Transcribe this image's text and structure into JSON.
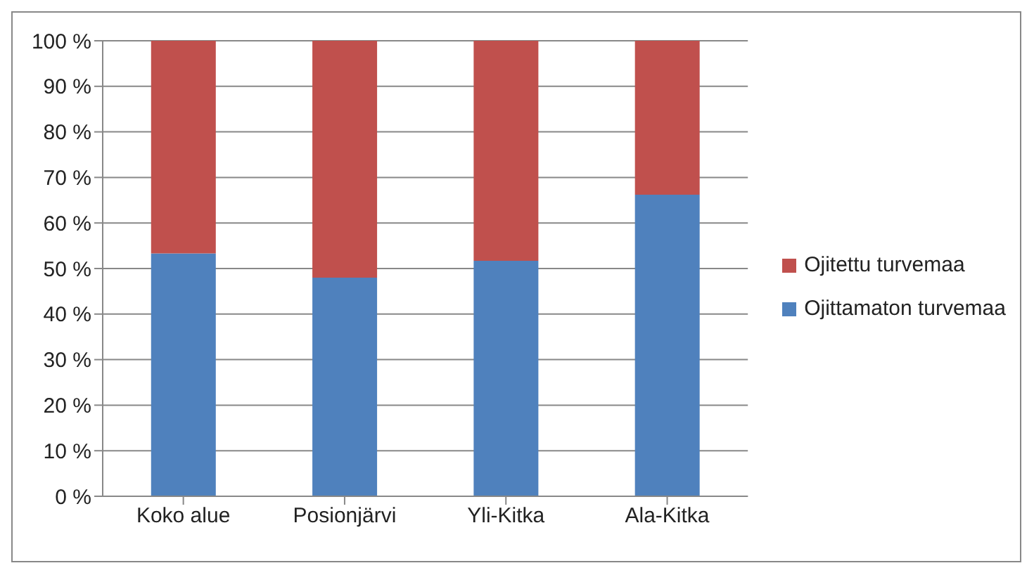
{
  "chart_data": {
    "type": "bar",
    "stacked": true,
    "categories": [
      "Koko alue",
      "Posionjärvi",
      "Yli-Kitka",
      "Ala-Kitka"
    ],
    "series": [
      {
        "name": "Ojittamaton turvemaa",
        "color": "#4f81bd",
        "values": [
          53.3,
          48.0,
          51.7,
          66.2
        ]
      },
      {
        "name": "Ojitettu turvemaa",
        "color": "#c0504d",
        "values": [
          46.7,
          52.0,
          48.3,
          33.8
        ]
      }
    ],
    "ylim": [
      0,
      100
    ],
    "yticks": [
      {
        "value": 0,
        "label": "0 %"
      },
      {
        "value": 10,
        "label": "10 %"
      },
      {
        "value": 20,
        "label": "20 %"
      },
      {
        "value": 30,
        "label": "30 %"
      },
      {
        "value": 40,
        "label": "40 %"
      },
      {
        "value": 50,
        "label": "50 %"
      },
      {
        "value": 60,
        "label": "60 %"
      },
      {
        "value": 70,
        "label": "70 %"
      },
      {
        "value": 80,
        "label": "80 %"
      },
      {
        "value": 90,
        "label": "90 %"
      },
      {
        "value": 100,
        "label": "100 %"
      }
    ],
    "grid": "y",
    "legend": "right"
  }
}
